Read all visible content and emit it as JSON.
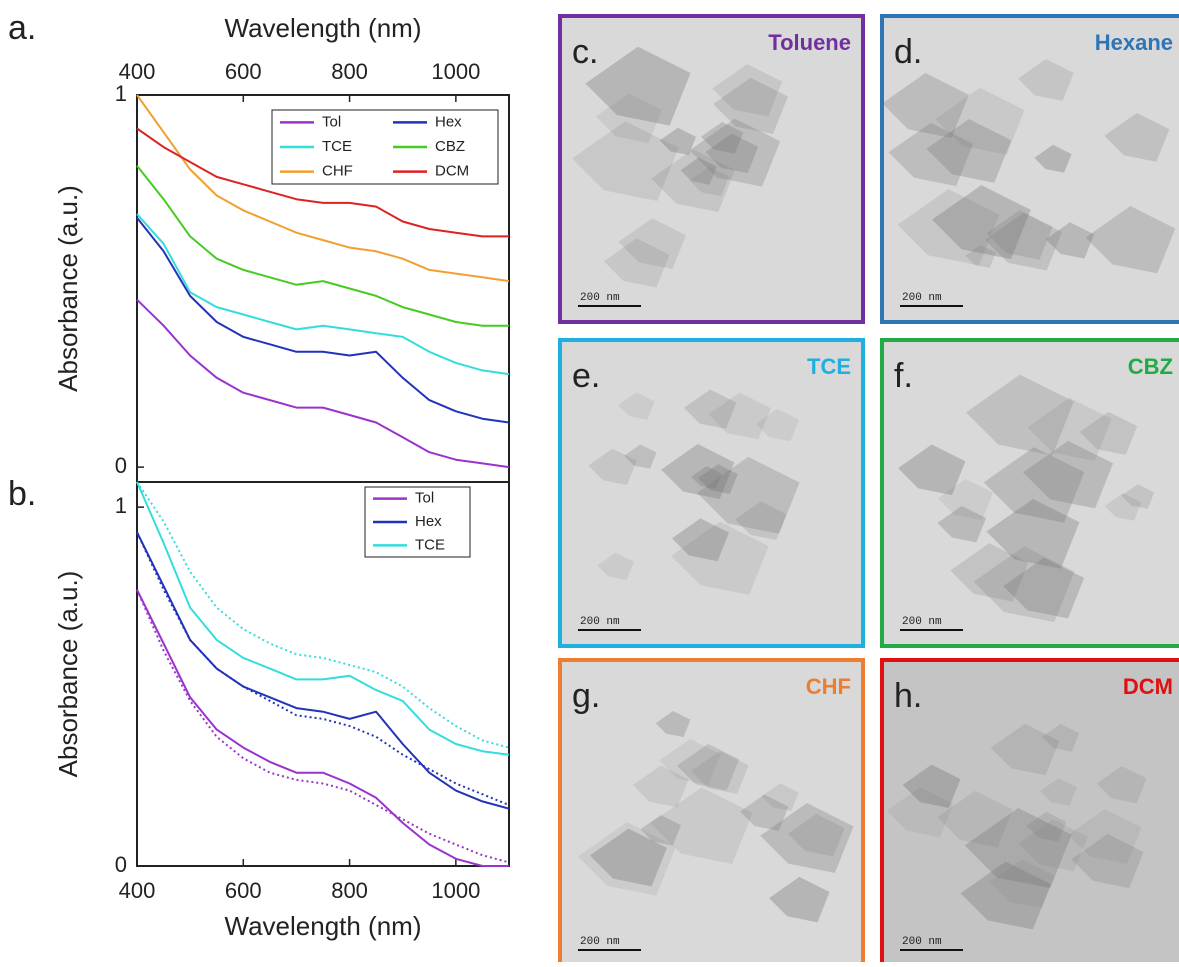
{
  "chart_data": [
    {
      "type": "line",
      "label": "a.",
      "x_label": "Wavelength (nm)",
      "y_label": "Absorbance (a.u.)",
      "xaxis_position": "top",
      "legend_position": "upper right",
      "legend_columns": 2,
      "x": [
        400,
        450,
        500,
        550,
        600,
        650,
        700,
        750,
        800,
        850,
        900,
        950,
        1000,
        1050,
        1100
      ],
      "xlim": [
        400,
        1100
      ],
      "xticks": [
        400,
        600,
        800,
        1000
      ],
      "ylim": [
        -0.04,
        1
      ],
      "yticks": [
        0,
        1
      ],
      "series": [
        {
          "name": "Tol",
          "color": "#9a33cc",
          "values": [
            0.45,
            0.38,
            0.3,
            0.24,
            0.2,
            0.18,
            0.16,
            0.16,
            0.14,
            0.12,
            0.08,
            0.04,
            0.02,
            0.01,
            0.0
          ]
        },
        {
          "name": "Hex",
          "color": "#2233bb",
          "values": [
            0.67,
            0.58,
            0.46,
            0.39,
            0.35,
            0.33,
            0.31,
            0.31,
            0.3,
            0.31,
            0.24,
            0.18,
            0.15,
            0.13,
            0.12
          ]
        },
        {
          "name": "TCE",
          "color": "#33dddd",
          "values": [
            0.68,
            0.6,
            0.47,
            0.43,
            0.41,
            0.39,
            0.37,
            0.38,
            0.37,
            0.36,
            0.35,
            0.31,
            0.28,
            0.26,
            0.25
          ]
        },
        {
          "name": "CBZ",
          "color": "#44cc22",
          "values": [
            0.81,
            0.72,
            0.62,
            0.56,
            0.53,
            0.51,
            0.49,
            0.5,
            0.48,
            0.46,
            0.43,
            0.41,
            0.39,
            0.38,
            0.38
          ]
        },
        {
          "name": "CHF",
          "color": "#f0a030",
          "values": [
            1.0,
            0.9,
            0.8,
            0.73,
            0.69,
            0.66,
            0.63,
            0.61,
            0.59,
            0.58,
            0.56,
            0.53,
            0.52,
            0.51,
            0.5
          ]
        },
        {
          "name": "DCM",
          "color": "#dd2222",
          "values": [
            0.91,
            0.86,
            0.82,
            0.78,
            0.76,
            0.74,
            0.72,
            0.71,
            0.71,
            0.7,
            0.66,
            0.64,
            0.63,
            0.62,
            0.62
          ]
        }
      ]
    },
    {
      "type": "line",
      "label": "b.",
      "x_label": "Wavelength (nm)",
      "y_label": "Absorbance (a.u.)",
      "xaxis_position": "bottom",
      "legend_position": "upper right",
      "legend_columns": 1,
      "x": [
        400,
        450,
        500,
        550,
        600,
        650,
        700,
        750,
        800,
        850,
        900,
        950,
        1000,
        1050,
        1100
      ],
      "xlim": [
        400,
        1100
      ],
      "xticks": [
        400,
        600,
        800,
        1000
      ],
      "ylim": [
        0,
        1.07
      ],
      "yticks": [
        0,
        1
      ],
      "series": [
        {
          "name": "Tol",
          "color": "#9a33cc",
          "values": [
            0.77,
            0.62,
            0.47,
            0.38,
            0.33,
            0.29,
            0.26,
            0.26,
            0.23,
            0.19,
            0.12,
            0.06,
            0.02,
            0.0,
            0.0
          ]
        },
        {
          "name": "Hex",
          "color": "#2233bb",
          "values": [
            0.93,
            0.78,
            0.63,
            0.55,
            0.5,
            0.47,
            0.44,
            0.43,
            0.41,
            0.43,
            0.34,
            0.26,
            0.21,
            0.18,
            0.16
          ]
        },
        {
          "name": "TCE",
          "color": "#33dddd",
          "values": [
            1.07,
            0.9,
            0.72,
            0.63,
            0.58,
            0.55,
            0.52,
            0.52,
            0.53,
            0.49,
            0.46,
            0.38,
            0.34,
            0.32,
            0.31
          ]
        },
        {
          "color": "#9a33cc",
          "dashed": true,
          "values": [
            0.77,
            0.6,
            0.46,
            0.36,
            0.3,
            0.26,
            0.24,
            0.23,
            0.21,
            0.17,
            0.13,
            0.09,
            0.06,
            0.03,
            0.01
          ]
        },
        {
          "color": "#2233bb",
          "dashed": true,
          "values": [
            0.93,
            0.77,
            0.63,
            0.55,
            0.5,
            0.46,
            0.42,
            0.41,
            0.39,
            0.36,
            0.31,
            0.27,
            0.23,
            0.2,
            0.17
          ]
        },
        {
          "color": "#33dddd",
          "dashed": true,
          "values": [
            1.07,
            0.96,
            0.82,
            0.72,
            0.66,
            0.62,
            0.59,
            0.58,
            0.56,
            0.54,
            0.5,
            0.44,
            0.39,
            0.35,
            0.33
          ]
        }
      ]
    }
  ],
  "panels": [
    {
      "label": "c.",
      "title": "Toluene",
      "color": "#7030a0",
      "scale": "200 nm"
    },
    {
      "label": "d.",
      "title": "Hexane",
      "color": "#2e75b6",
      "scale": "200 nm"
    },
    {
      "label": "e.",
      "title": "TCE",
      "color": "#1fb0e0",
      "scale": "200 nm"
    },
    {
      "label": "f.",
      "title": "CBZ",
      "color": "#22aa44",
      "scale": "200 nm"
    },
    {
      "label": "g.",
      "title": "CHF",
      "color": "#ed7d31",
      "scale": "200 nm"
    },
    {
      "label": "h.",
      "title": "DCM",
      "color": "#e01010",
      "scale": "200 nm"
    }
  ]
}
